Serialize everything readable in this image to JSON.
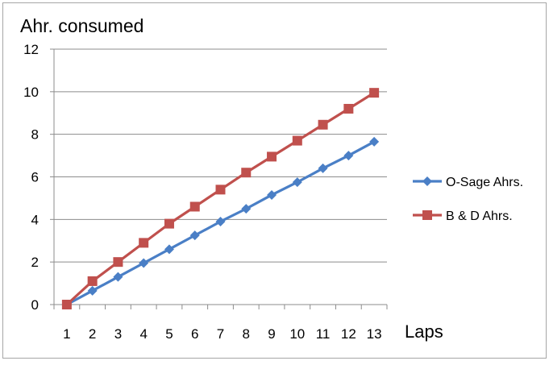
{
  "chart_data": {
    "type": "line",
    "title": "",
    "ylabel": "Ahr. consumed",
    "xlabel": "Laps",
    "categories": [
      "1",
      "2",
      "3",
      "4",
      "5",
      "6",
      "7",
      "8",
      "9",
      "10",
      "11",
      "12",
      "13"
    ],
    "ylim": [
      0,
      12
    ],
    "yticks": [
      "0",
      "2",
      "4",
      "6",
      "8",
      "10",
      "12"
    ],
    "grid": "horizontal",
    "legend_position": "right",
    "series": [
      {
        "name": "O-Sage Ahrs.",
        "color": "#4a7fc6",
        "marker": "diamond",
        "values": [
          0,
          0.65,
          1.3,
          1.95,
          2.6,
          3.25,
          3.9,
          4.5,
          5.15,
          5.75,
          6.4,
          7.0,
          7.65
        ]
      },
      {
        "name": "B & D Ahrs.",
        "color": "#c0504d",
        "marker": "square",
        "values": [
          0,
          1.1,
          2.0,
          2.9,
          3.8,
          4.6,
          5.4,
          6.2,
          6.95,
          7.7,
          8.45,
          9.2,
          9.95
        ]
      }
    ]
  }
}
